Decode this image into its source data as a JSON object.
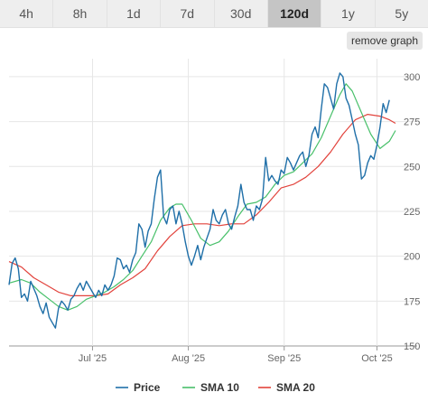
{
  "toolbar": {
    "tabs": [
      {
        "label": "4h",
        "active": false
      },
      {
        "label": "8h",
        "active": false
      },
      {
        "label": "1d",
        "active": false
      },
      {
        "label": "7d",
        "active": false
      },
      {
        "label": "30d",
        "active": false
      },
      {
        "label": "120d",
        "active": true
      },
      {
        "label": "1y",
        "active": false
      },
      {
        "label": "5y",
        "active": false
      }
    ],
    "remove_graph_label": "remove graph"
  },
  "chart_data": {
    "type": "line",
    "x_axis": {
      "type": "date",
      "range": [
        "2025-06-04",
        "2025-10-07"
      ],
      "ticks": [
        {
          "date": "2025-07-01",
          "label": "Jul '25"
        },
        {
          "date": "2025-08-01",
          "label": "Aug '25"
        },
        {
          "date": "2025-09-01",
          "label": "Sep '25"
        },
        {
          "date": "2025-10-01",
          "label": "Oct '25"
        }
      ]
    },
    "y_axis": {
      "range": [
        150,
        310
      ],
      "ticks": [
        150,
        175,
        200,
        225,
        250,
        275,
        300
      ],
      "position": "right"
    },
    "grid": {
      "horizontal": true,
      "vertical": true
    },
    "legend": {
      "position": "bottom"
    },
    "series": [
      {
        "name": "Price",
        "color": "#1f6fa8",
        "points": [
          [
            "2025-06-04",
            184
          ],
          [
            "2025-06-05",
            196
          ],
          [
            "2025-06-06",
            199
          ],
          [
            "2025-06-07",
            193
          ],
          [
            "2025-06-08",
            177
          ],
          [
            "2025-06-09",
            179
          ],
          [
            "2025-06-10",
            175
          ],
          [
            "2025-06-11",
            186
          ],
          [
            "2025-06-12",
            182
          ],
          [
            "2025-06-13",
            178
          ],
          [
            "2025-06-14",
            172
          ],
          [
            "2025-06-15",
            168
          ],
          [
            "2025-06-16",
            174
          ],
          [
            "2025-06-17",
            166
          ],
          [
            "2025-06-18",
            163
          ],
          [
            "2025-06-19",
            160
          ],
          [
            "2025-06-20",
            171
          ],
          [
            "2025-06-21",
            175
          ],
          [
            "2025-06-22",
            173
          ],
          [
            "2025-06-23",
            170
          ],
          [
            "2025-06-24",
            176
          ],
          [
            "2025-06-25",
            178
          ],
          [
            "2025-06-26",
            182
          ],
          [
            "2025-06-27",
            185
          ],
          [
            "2025-06-28",
            181
          ],
          [
            "2025-06-29",
            186
          ],
          [
            "2025-06-30",
            183
          ],
          [
            "2025-07-01",
            180
          ],
          [
            "2025-07-02",
            177
          ],
          [
            "2025-07-03",
            181
          ],
          [
            "2025-07-04",
            178
          ],
          [
            "2025-07-05",
            184
          ],
          [
            "2025-07-06",
            181
          ],
          [
            "2025-07-07",
            184
          ],
          [
            "2025-07-08",
            189
          ],
          [
            "2025-07-09",
            199
          ],
          [
            "2025-07-10",
            198
          ],
          [
            "2025-07-11",
            193
          ],
          [
            "2025-07-12",
            195
          ],
          [
            "2025-07-13",
            191
          ],
          [
            "2025-07-14",
            198
          ],
          [
            "2025-07-15",
            202
          ],
          [
            "2025-07-16",
            218
          ],
          [
            "2025-07-17",
            215
          ],
          [
            "2025-07-18",
            205
          ],
          [
            "2025-07-19",
            214
          ],
          [
            "2025-07-20",
            218
          ],
          [
            "2025-07-21",
            232
          ],
          [
            "2025-07-22",
            244
          ],
          [
            "2025-07-23",
            248
          ],
          [
            "2025-07-24",
            222
          ],
          [
            "2025-07-25",
            218
          ],
          [
            "2025-07-26",
            226
          ],
          [
            "2025-07-27",
            228
          ],
          [
            "2025-07-28",
            218
          ],
          [
            "2025-07-29",
            225
          ],
          [
            "2025-07-30",
            218
          ],
          [
            "2025-07-31",
            208
          ],
          [
            "2025-08-01",
            200
          ],
          [
            "2025-08-02",
            195
          ],
          [
            "2025-08-03",
            200
          ],
          [
            "2025-08-04",
            206
          ],
          [
            "2025-08-05",
            198
          ],
          [
            "2025-08-06",
            205
          ],
          [
            "2025-08-07",
            210
          ],
          [
            "2025-08-08",
            215
          ],
          [
            "2025-08-09",
            226
          ],
          [
            "2025-08-10",
            220
          ],
          [
            "2025-08-11",
            218
          ],
          [
            "2025-08-12",
            223
          ],
          [
            "2025-08-13",
            226
          ],
          [
            "2025-08-14",
            218
          ],
          [
            "2025-08-15",
            215
          ],
          [
            "2025-08-16",
            222
          ],
          [
            "2025-08-17",
            228
          ],
          [
            "2025-08-18",
            240
          ],
          [
            "2025-08-19",
            230
          ],
          [
            "2025-08-20",
            226
          ],
          [
            "2025-08-21",
            226
          ],
          [
            "2025-08-22",
            220
          ],
          [
            "2025-08-23",
            228
          ],
          [
            "2025-08-24",
            226
          ],
          [
            "2025-08-25",
            232
          ],
          [
            "2025-08-26",
            255
          ],
          [
            "2025-08-27",
            242
          ],
          [
            "2025-08-28",
            245
          ],
          [
            "2025-08-29",
            242
          ],
          [
            "2025-08-30",
            240
          ],
          [
            "2025-08-31",
            248
          ],
          [
            "2025-09-01",
            246
          ],
          [
            "2025-09-02",
            255
          ],
          [
            "2025-09-03",
            252
          ],
          [
            "2025-09-04",
            248
          ],
          [
            "2025-09-05",
            252
          ],
          [
            "2025-09-06",
            256
          ],
          [
            "2025-09-07",
            258
          ],
          [
            "2025-09-08",
            250
          ],
          [
            "2025-09-09",
            256
          ],
          [
            "2025-09-10",
            268
          ],
          [
            "2025-09-11",
            272
          ],
          [
            "2025-09-12",
            266
          ],
          [
            "2025-09-13",
            282
          ],
          [
            "2025-09-14",
            296
          ],
          [
            "2025-09-15",
            294
          ],
          [
            "2025-09-16",
            288
          ],
          [
            "2025-09-17",
            282
          ],
          [
            "2025-09-18",
            296
          ],
          [
            "2025-09-19",
            302
          ],
          [
            "2025-09-20",
            300
          ],
          [
            "2025-09-21",
            288
          ],
          [
            "2025-09-22",
            284
          ],
          [
            "2025-09-23",
            276
          ],
          [
            "2025-09-24",
            268
          ],
          [
            "2025-09-25",
            262
          ],
          [
            "2025-09-26",
            243
          ],
          [
            "2025-09-27",
            245
          ],
          [
            "2025-09-28",
            252
          ],
          [
            "2025-09-29",
            256
          ],
          [
            "2025-09-30",
            254
          ],
          [
            "2025-10-01",
            262
          ],
          [
            "2025-10-02",
            272
          ],
          [
            "2025-10-03",
            285
          ],
          [
            "2025-10-04",
            280
          ],
          [
            "2025-10-05",
            287
          ]
        ]
      },
      {
        "name": "SMA 10",
        "color": "#48c06a",
        "points": [
          [
            "2025-06-04",
            185
          ],
          [
            "2025-06-08",
            187
          ],
          [
            "2025-06-11",
            185
          ],
          [
            "2025-06-14",
            180
          ],
          [
            "2025-06-17",
            176
          ],
          [
            "2025-06-20",
            172
          ],
          [
            "2025-06-23",
            170
          ],
          [
            "2025-06-26",
            172
          ],
          [
            "2025-06-29",
            176
          ],
          [
            "2025-07-02",
            178
          ],
          [
            "2025-07-05",
            180
          ],
          [
            "2025-07-08",
            183
          ],
          [
            "2025-07-11",
            187
          ],
          [
            "2025-07-14",
            192
          ],
          [
            "2025-07-17",
            200
          ],
          [
            "2025-07-20",
            208
          ],
          [
            "2025-07-23",
            220
          ],
          [
            "2025-07-26",
            227
          ],
          [
            "2025-07-28",
            229
          ],
          [
            "2025-07-30",
            229
          ],
          [
            "2025-08-02",
            220
          ],
          [
            "2025-08-05",
            210
          ],
          [
            "2025-08-08",
            206
          ],
          [
            "2025-08-11",
            208
          ],
          [
            "2025-08-14",
            214
          ],
          [
            "2025-08-17",
            222
          ],
          [
            "2025-08-20",
            229
          ],
          [
            "2025-08-23",
            230
          ],
          [
            "2025-08-26",
            233
          ],
          [
            "2025-08-29",
            240
          ],
          [
            "2025-09-01",
            245
          ],
          [
            "2025-09-04",
            247
          ],
          [
            "2025-09-07",
            252
          ],
          [
            "2025-09-10",
            257
          ],
          [
            "2025-09-13",
            266
          ],
          [
            "2025-09-16",
            278
          ],
          [
            "2025-09-19",
            290
          ],
          [
            "2025-09-21",
            296
          ],
          [
            "2025-09-23",
            292
          ],
          [
            "2025-09-26",
            280
          ],
          [
            "2025-09-29",
            268
          ],
          [
            "2025-10-02",
            260
          ],
          [
            "2025-10-05",
            264
          ],
          [
            "2025-10-07",
            270
          ]
        ]
      },
      {
        "name": "SMA 20",
        "color": "#e2433c",
        "points": [
          [
            "2025-06-04",
            197
          ],
          [
            "2025-06-08",
            194
          ],
          [
            "2025-06-12",
            188
          ],
          [
            "2025-06-16",
            184
          ],
          [
            "2025-06-20",
            180
          ],
          [
            "2025-06-24",
            178
          ],
          [
            "2025-06-28",
            178
          ],
          [
            "2025-07-02",
            178
          ],
          [
            "2025-07-06",
            179
          ],
          [
            "2025-07-10",
            184
          ],
          [
            "2025-07-14",
            188
          ],
          [
            "2025-07-18",
            193
          ],
          [
            "2025-07-22",
            203
          ],
          [
            "2025-07-26",
            211
          ],
          [
            "2025-07-30",
            217
          ],
          [
            "2025-08-03",
            218
          ],
          [
            "2025-08-07",
            218
          ],
          [
            "2025-08-11",
            217
          ],
          [
            "2025-08-15",
            218
          ],
          [
            "2025-08-19",
            218
          ],
          [
            "2025-08-23",
            223
          ],
          [
            "2025-08-27",
            230
          ],
          [
            "2025-08-31",
            238
          ],
          [
            "2025-09-04",
            240
          ],
          [
            "2025-09-08",
            244
          ],
          [
            "2025-09-12",
            250
          ],
          [
            "2025-09-16",
            258
          ],
          [
            "2025-09-20",
            268
          ],
          [
            "2025-09-24",
            276
          ],
          [
            "2025-09-28",
            279
          ],
          [
            "2025-10-02",
            278
          ],
          [
            "2025-10-05",
            276
          ],
          [
            "2025-10-07",
            274
          ]
        ]
      }
    ]
  }
}
